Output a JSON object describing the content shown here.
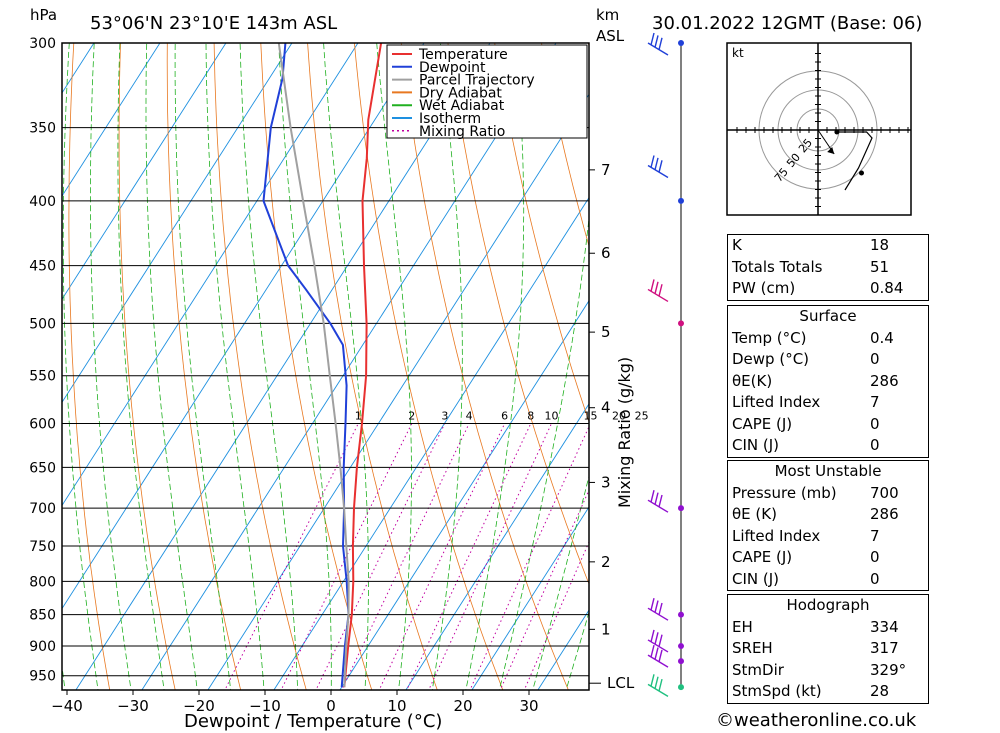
{
  "header": {
    "units_left": "hPa",
    "location": "53°06'N  23°10'E  143m  ASL",
    "units_km": "km",
    "units_asl": "ASL",
    "datetime": "30.01.2022  12GMT  (Base: 06)"
  },
  "legend": {
    "items": [
      {
        "label": "Temperature",
        "color": "#e83030",
        "style": "solid"
      },
      {
        "label": "Dewpoint",
        "color": "#2040d8",
        "style": "solid"
      },
      {
        "label": "Parcel Trajectory",
        "color": "#a0a0a0",
        "style": "solid"
      },
      {
        "label": "Dry Adiabat",
        "color": "#e87820",
        "style": "solid"
      },
      {
        "label": "Wet Adiabat",
        "color": "#20b020",
        "style": "solid"
      },
      {
        "label": "Isotherm",
        "color": "#1e90e0",
        "style": "solid"
      },
      {
        "label": "Mixing Ratio",
        "color": "#c000a0",
        "style": "dotted"
      }
    ]
  },
  "chart_data": {
    "type": "skew-t",
    "xlabel": "Dewpoint / Temperature (°C)",
    "ylabel_left": "hPa",
    "ylabel_right": "Mixing Ratio (g/kg)",
    "x_ticks": [
      -40,
      -30,
      -20,
      -10,
      0,
      10,
      20,
      30
    ],
    "x_tick_labels": [
      "−40",
      "−30",
      "−20",
      "−10",
      "0",
      "10",
      "20",
      "30"
    ],
    "pressure_levels": [
      300,
      350,
      400,
      450,
      500,
      550,
      600,
      650,
      700,
      750,
      800,
      850,
      900,
      950
    ],
    "km_ticks": [
      {
        "km": "7",
        "p": 378
      },
      {
        "km": "6",
        "p": 440
      },
      {
        "km": "5",
        "p": 508
      },
      {
        "km": "4",
        "p": 583
      },
      {
        "km": "3",
        "p": 668
      },
      {
        "km": "2",
        "p": 772
      },
      {
        "km": "1",
        "p": 873
      }
    ],
    "lcl_label": "LCL",
    "lcl_pressure": 963,
    "mixing_ratio_labels": [
      "1",
      "2",
      "3",
      "4",
      "6",
      "8",
      "10",
      "15",
      "20",
      "25"
    ],
    "mixing_ratio_values": [
      1,
      2,
      3,
      4,
      6,
      8,
      10,
      15,
      20,
      25
    ],
    "series": [
      {
        "name": "Temperature",
        "color": "#e83030",
        "points": [
          [
            970,
            0.4
          ],
          [
            900,
            -3.0
          ],
          [
            850,
            -5.5
          ],
          [
            800,
            -8.5
          ],
          [
            750,
            -12.0
          ],
          [
            700,
            -15.5
          ],
          [
            650,
            -19.0
          ],
          [
            600,
            -22.5
          ],
          [
            550,
            -26.5
          ],
          [
            500,
            -31.5
          ],
          [
            450,
            -37.5
          ],
          [
            400,
            -44.0
          ],
          [
            370,
            -47.5
          ],
          [
            345,
            -51.0
          ],
          [
            300,
            -56.5
          ]
        ]
      },
      {
        "name": "Dewpoint",
        "color": "#2040d8",
        "points": [
          [
            970,
            0.0
          ],
          [
            900,
            -3.5
          ],
          [
            850,
            -6.0
          ],
          [
            800,
            -9.5
          ],
          [
            750,
            -13.5
          ],
          [
            700,
            -17.0
          ],
          [
            650,
            -21.0
          ],
          [
            600,
            -25.0
          ],
          [
            560,
            -28.5
          ],
          [
            520,
            -33.0
          ],
          [
            500,
            -37.0
          ],
          [
            470,
            -44.0
          ],
          [
            450,
            -49.0
          ],
          [
            400,
            -59.0
          ],
          [
            350,
            -65.0
          ],
          [
            320,
            -68.0
          ],
          [
            300,
            -71.0
          ]
        ]
      },
      {
        "name": "Parcel Trajectory",
        "color": "#a0a0a0",
        "points": [
          [
            970,
            0.4
          ],
          [
            900,
            -3.3
          ],
          [
            850,
            -6.0
          ],
          [
            800,
            -9.2
          ],
          [
            750,
            -13.0
          ],
          [
            700,
            -17.0
          ],
          [
            650,
            -21.5
          ],
          [
            600,
            -26.5
          ],
          [
            550,
            -32.0
          ],
          [
            500,
            -38.0
          ],
          [
            450,
            -45.0
          ],
          [
            400,
            -53.0
          ],
          [
            350,
            -62.0
          ],
          [
            300,
            -72.0
          ]
        ]
      }
    ],
    "wind_barbs": [
      {
        "p": 300,
        "color": "#2040d8"
      },
      {
        "p": 375,
        "color": "#2040d8"
      },
      {
        "p": 470,
        "color": "#d01080"
      },
      {
        "p": 690,
        "color": "#9010d0"
      },
      {
        "p": 840,
        "color": "#9010d0"
      },
      {
        "p": 890,
        "color": "#9010d0"
      },
      {
        "p": 915,
        "color": "#9010d0"
      },
      {
        "p": 965,
        "color": "#20c080"
      }
    ],
    "wind_dots": [
      300,
      400,
      500,
      700,
      850,
      900,
      925,
      970
    ],
    "hodograph": {
      "unit_label": "kt",
      "ring_labels": [
        "25",
        "50",
        "75"
      ],
      "storm_dir": 329,
      "storm_speed": 28,
      "trace": [
        [
          0.35,
          0.05
        ],
        [
          0.9,
          0.05
        ],
        [
          1.0,
          0.2
        ],
        [
          0.75,
          0.95
        ],
        [
          0.5,
          1.5
        ]
      ],
      "storm_motion": [
        [
          0,
          0
        ],
        [
          0.3,
          0.6
        ]
      ]
    }
  },
  "stats": {
    "indices": [
      {
        "label": "K",
        "value": "18"
      },
      {
        "label": "Totals Totals",
        "value": "51"
      },
      {
        "label": "PW (cm)",
        "value": "0.84"
      }
    ],
    "surface": {
      "title": "Surface",
      "rows": [
        {
          "label": "Temp (°C)",
          "value": "0.4"
        },
        {
          "label": "Dewp (°C)",
          "value": "0"
        },
        {
          "label": "θE(K)",
          "value": "286"
        },
        {
          "label": "Lifted Index",
          "value": "7"
        },
        {
          "label": "CAPE (J)",
          "value": "0"
        },
        {
          "label": "CIN (J)",
          "value": "0"
        }
      ]
    },
    "most_unstable": {
      "title": "Most Unstable",
      "rows": [
        {
          "label": "Pressure (mb)",
          "value": "700"
        },
        {
          "label": "θE (K)",
          "value": "286"
        },
        {
          "label": "Lifted Index",
          "value": "7"
        },
        {
          "label": "CAPE (J)",
          "value": "0"
        },
        {
          "label": "CIN (J)",
          "value": "0"
        }
      ]
    },
    "hodograph": {
      "title": "Hodograph",
      "rows": [
        {
          "label": "EH",
          "value": "334"
        },
        {
          "label": "SREH",
          "value": "317"
        },
        {
          "label": "StmDir",
          "value": "329°"
        },
        {
          "label": "StmSpd (kt)",
          "value": "28"
        }
      ]
    }
  },
  "footer": {
    "copyright": "©weatheronline.co.uk"
  }
}
